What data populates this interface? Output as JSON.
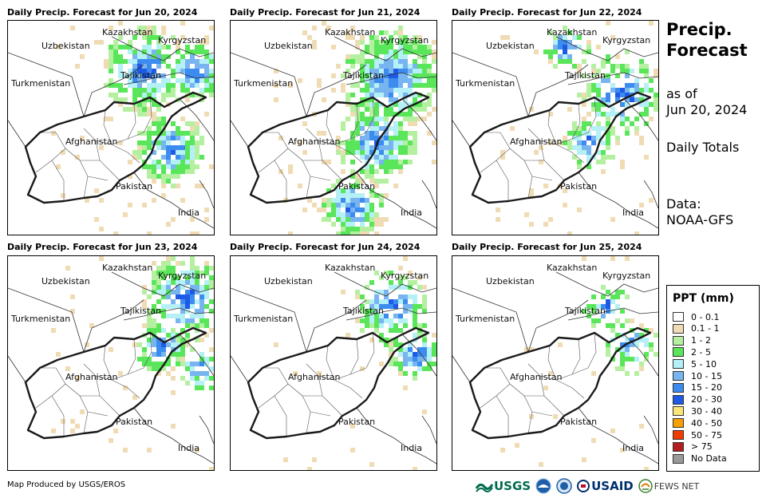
{
  "panels": [
    {
      "title": "Daily Precip. Forecast for Jun 20, 2024"
    },
    {
      "title": "Daily Precip. Forecast for Jun 21, 2024"
    },
    {
      "title": "Daily Precip. Forecast for Jun 22, 2024"
    },
    {
      "title": "Daily Precip. Forecast for Jun 23, 2024"
    },
    {
      "title": "Daily Precip. Forecast for Jun 24, 2024"
    },
    {
      "title": "Daily Precip. Forecast for Jun 25, 2024"
    }
  ],
  "places": {
    "kazakhstan": "Kazakhstan",
    "kyrgyzstan": "Kyrgyzstan",
    "uzbekistan": "Uzbekistan",
    "tajikistan": "Tajikistan",
    "turkmenistan": "Turkmenistan",
    "afghanistan": "Afghanistan",
    "pakistan": "Pakistan",
    "india": "India"
  },
  "side": {
    "title_line1": "Precip.",
    "title_line2": "Forecast",
    "as_of_line1": "as of",
    "as_of_line2": "Jun 20, 2024",
    "period": "Daily Totals",
    "data_line1": "Data:",
    "data_line2": "NOAA-GFS"
  },
  "legend": {
    "title": "PPT (mm)",
    "items": [
      {
        "label": "0 - 0.1",
        "color": "#ffffff"
      },
      {
        "label": "0.1 - 1",
        "color": "#f0dcb4"
      },
      {
        "label": "1 - 2",
        "color": "#b4f0a0"
      },
      {
        "label": "2 - 5",
        "color": "#5ae65a"
      },
      {
        "label": "5 - 10",
        "color": "#b4f0f5"
      },
      {
        "label": "10 - 15",
        "color": "#78b4f0"
      },
      {
        "label": "15 - 20",
        "color": "#3c8cf0"
      },
      {
        "label": "20 - 30",
        "color": "#1e5ae6"
      },
      {
        "label": "30 - 40",
        "color": "#fae678"
      },
      {
        "label": "40 - 50",
        "color": "#f5a000"
      },
      {
        "label": "50 - 75",
        "color": "#f03c00"
      },
      {
        "label": "> 75",
        "color": "#b41e1e"
      },
      {
        "label": "No Data",
        "color": "#999999"
      }
    ]
  },
  "credit": "Map Produced by USGS/EROS",
  "logos": {
    "usgs": "USGS",
    "usaid": "USAID",
    "fewsnet": "FEWS NET"
  }
}
